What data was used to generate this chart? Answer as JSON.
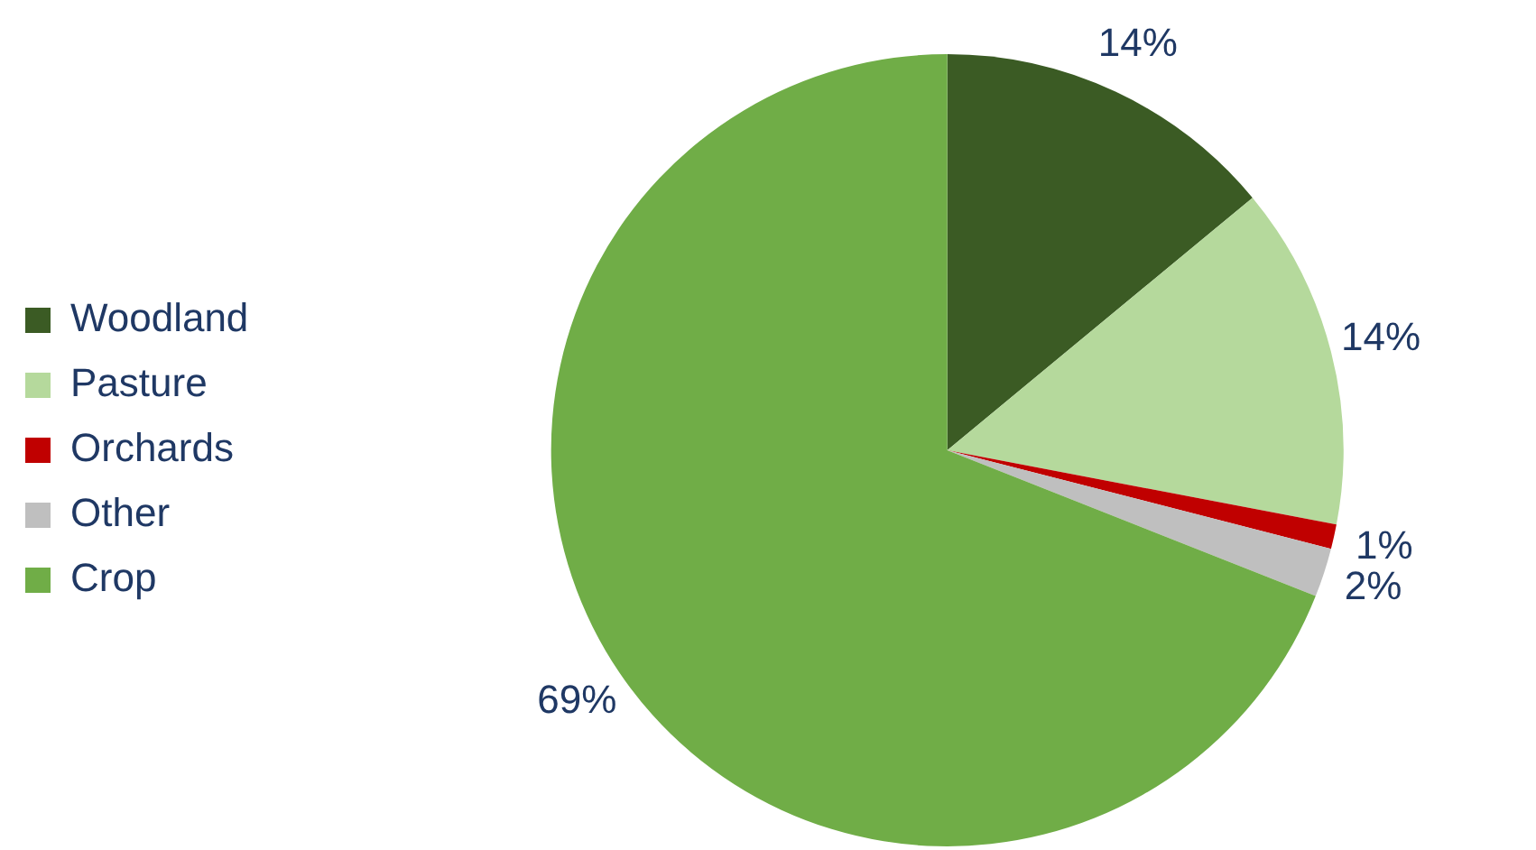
{
  "chart_data": {
    "type": "pie",
    "categories": [
      "Woodland",
      "Pasture",
      "Orchards",
      "Other",
      "Crop"
    ],
    "values": [
      14,
      14,
      1,
      2,
      69
    ],
    "colors": [
      "#3b5b24",
      "#b5d99c",
      "#c00000",
      "#bfbfbf",
      "#70ad47"
    ],
    "value_labels": [
      "14%",
      "14%",
      "1%",
      "2%",
      "69%"
    ],
    "legend": "left"
  }
}
